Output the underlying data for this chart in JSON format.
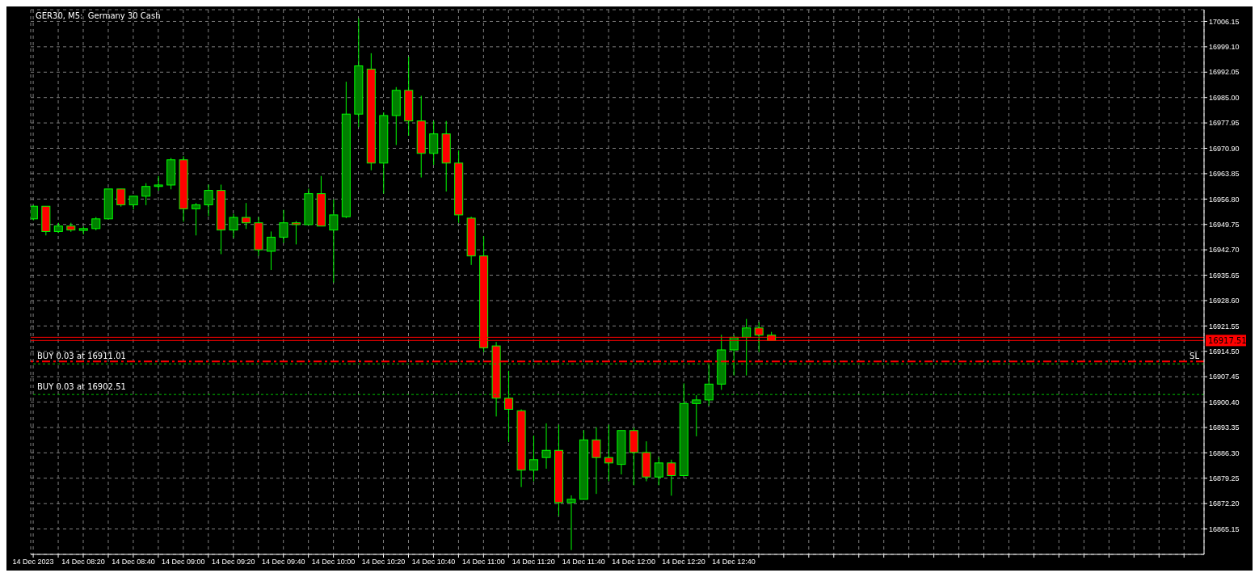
{
  "chart_data": {
    "type": "candlestick",
    "title": "GER30, M5:  Germany 30 Cash",
    "x": [
      "2023-12-14T08:00",
      "2023-12-14T08:05",
      "2023-12-14T08:10",
      "2023-12-14T08:15",
      "2023-12-14T08:20",
      "2023-12-14T08:25",
      "2023-12-14T08:30",
      "2023-12-14T08:35",
      "2023-12-14T08:40",
      "2023-12-14T08:45",
      "2023-12-14T08:50",
      "2023-12-14T08:55",
      "2023-12-14T09:00",
      "2023-12-14T09:05",
      "2023-12-14T09:10",
      "2023-12-14T09:15",
      "2023-12-14T09:20",
      "2023-12-14T09:25",
      "2023-12-14T09:30",
      "2023-12-14T09:35",
      "2023-12-14T09:40",
      "2023-12-14T09:45",
      "2023-12-14T09:50",
      "2023-12-14T09:55",
      "2023-12-14T10:00",
      "2023-12-14T10:05",
      "2023-12-14T10:10",
      "2023-12-14T10:15",
      "2023-12-14T10:20",
      "2023-12-14T10:25",
      "2023-12-14T10:30",
      "2023-12-14T10:35",
      "2023-12-14T10:40",
      "2023-12-14T10:45",
      "2023-12-14T10:50",
      "2023-12-14T10:55",
      "2023-12-14T11:00",
      "2023-12-14T11:05",
      "2023-12-14T11:10",
      "2023-12-14T11:15",
      "2023-12-14T11:20",
      "2023-12-14T11:25",
      "2023-12-14T11:30",
      "2023-12-14T11:35",
      "2023-12-14T11:40",
      "2023-12-14T11:45",
      "2023-12-14T11:50",
      "2023-12-14T11:55",
      "2023-12-14T12:00",
      "2023-12-14T12:05",
      "2023-12-14T12:10",
      "2023-12-14T12:15",
      "2023-12-14T12:20",
      "2023-12-14T12:25",
      "2023-12-14T12:30",
      "2023-12-14T12:35",
      "2023-12-14T12:40",
      "2023-12-14T12:45",
      "2023-12-14T12:50",
      "2023-12-14T12:55"
    ],
    "ohlc": [
      [
        16951.3,
        16955.1,
        16950.9,
        16954.8
      ],
      [
        16954.8,
        16954.8,
        16946.7,
        16947.8
      ],
      [
        16947.8,
        16950.2,
        16947.4,
        16949.3
      ],
      [
        16949.3,
        16950.2,
        16947.7,
        16948.2
      ],
      [
        16948.1,
        16949.2,
        16947.0,
        16948.6
      ],
      [
        16948.6,
        16951.8,
        16948.1,
        16951.3
      ],
      [
        16951.3,
        16959.6,
        16951.3,
        16959.6
      ],
      [
        16959.6,
        16959.6,
        16954.7,
        16955.2
      ],
      [
        16955.2,
        16957.6,
        16953.9,
        16957.6
      ],
      [
        16957.6,
        16961.2,
        16955.1,
        16960.3
      ],
      [
        16960.3,
        16963.2,
        16959.1,
        16960.7
      ],
      [
        16960.7,
        16968.2,
        16959.5,
        16967.7
      ],
      [
        16967.7,
        16968.7,
        16950.5,
        16954.1
      ],
      [
        16954.1,
        16955.7,
        16946.7,
        16955.2
      ],
      [
        16955.2,
        16960.8,
        16952.1,
        16959.2
      ],
      [
        16959.2,
        16960.8,
        16941.5,
        16948.2
      ],
      [
        16948.2,
        16952.7,
        16946.0,
        16951.7
      ],
      [
        16951.7,
        16955.7,
        16948.5,
        16950.2
      ],
      [
        16950.2,
        16951.8,
        16941.0,
        16942.7
      ],
      [
        16942.3,
        16947.8,
        16937.1,
        16946.2
      ],
      [
        16946.2,
        16953.8,
        16944.6,
        16950.2
      ],
      [
        16950.2,
        16950.7,
        16944.2,
        16949.7
      ],
      [
        16949.7,
        16959.7,
        16949.7,
        16958.3
      ],
      [
        16958.3,
        16963.2,
        16949.3,
        16949.3
      ],
      [
        16948.2,
        16956.7,
        16933.6,
        16952.4
      ],
      [
        16951.9,
        16989.4,
        16951.5,
        16980.4
      ],
      [
        16980.4,
        17007.0,
        16976.8,
        16993.8
      ],
      [
        16992.9,
        16997.3,
        16964.8,
        16966.8
      ],
      [
        16966.8,
        16980.9,
        16958.3,
        16980.0
      ],
      [
        16980.0,
        16987.9,
        16971.8,
        16987.0
      ],
      [
        16987.0,
        16996.3,
        16974.4,
        16978.5
      ],
      [
        16978.5,
        16985.5,
        16962.8,
        16969.5
      ],
      [
        16969.5,
        16978.5,
        16966.3,
        16974.9
      ],
      [
        16974.9,
        16978.5,
        16958.9,
        16966.8
      ],
      [
        16966.8,
        16970.3,
        16950.2,
        16952.4
      ],
      [
        16951.5,
        16951.9,
        16938.5,
        16941.0
      ],
      [
        16941.0,
        16946.5,
        16914.3,
        16915.5
      ],
      [
        16916.0,
        16917.1,
        16896.4,
        16901.5
      ],
      [
        16901.5,
        16909.1,
        16889.3,
        16898.4
      ],
      [
        16898.0,
        16898.4,
        16876.8,
        16881.5
      ],
      [
        16881.5,
        16891.1,
        16878.4,
        16884.4
      ],
      [
        16885.0,
        16894.5,
        16881.9,
        16887.0
      ],
      [
        16887.0,
        16894.1,
        16868.8,
        16872.5
      ],
      [
        16872.5,
        16874.5,
        16859.3,
        16873.4
      ],
      [
        16873.4,
        16892.6,
        16873.4,
        16889.9
      ],
      [
        16889.9,
        16893.4,
        16874.9,
        16885.0
      ],
      [
        16885.0,
        16894.1,
        16878.4,
        16883.5
      ],
      [
        16883.1,
        16892.5,
        16880.3,
        16892.5
      ],
      [
        16892.5,
        16893.3,
        16877.3,
        16886.4
      ],
      [
        16886.4,
        16889.5,
        16878.4,
        16879.6
      ],
      [
        16879.6,
        16885.1,
        16877.3,
        16883.5
      ],
      [
        16883.5,
        16884.4,
        16874.4,
        16880.0
      ],
      [
        16880.0,
        16905.6,
        16880.0,
        16900.0
      ],
      [
        16900.0,
        16902.3,
        16890.9,
        16901.0
      ],
      [
        16901.0,
        16910.8,
        16899.4,
        16905.4
      ],
      [
        16905.4,
        16919.1,
        16903.8,
        16914.9
      ],
      [
        16914.9,
        16919.0,
        16907.8,
        16918.4
      ],
      [
        16918.4,
        16923.5,
        16907.8,
        16921.0
      ],
      [
        16921.0,
        16922.6,
        16914.3,
        16919.0
      ],
      [
        16919.0,
        16919.9,
        16917.5,
        16917.5
      ]
    ],
    "colors": [
      "#008000",
      "#ff0000",
      "#008000",
      "#ff0000",
      "#008000",
      "#008000",
      "#008000",
      "#ff0000",
      "#008000",
      "#008000",
      "#008000",
      "#008000",
      "#ff0000",
      "#008000",
      "#008000",
      "#ff0000",
      "#008000",
      "#ff0000",
      "#ff0000",
      "#008000",
      "#008000",
      "#ff0000",
      "#008000",
      "#ff0000",
      "#008000",
      "#008000",
      "#008000",
      "#ff0000",
      "#008000",
      "#008000",
      "#ff0000",
      "#ff0000",
      "#008000",
      "#ff0000",
      "#ff0000",
      "#ff0000",
      "#ff0000",
      "#ff0000",
      "#ff0000",
      "#ff0000",
      "#008000",
      "#008000",
      "#ff0000",
      "#008000",
      "#008000",
      "#ff0000",
      "#ff0000",
      "#008000",
      "#ff0000",
      "#ff0000",
      "#008000",
      "#ff0000",
      "#008000",
      "#008000",
      "#008000",
      "#008000",
      "#008000",
      "#008000",
      "#ff0000",
      "#ff0000"
    ],
    "color": "#00ff00",
    "xlim": [
      "2023-12-14T07:59",
      "2023-12-14T15:48"
    ],
    "xticks": [
      {
        "value": "2023-12-14T08:00",
        "label": "14 Dec 2023"
      },
      {
        "value": "2023-12-14T08:10",
        "label": null
      },
      {
        "value": "2023-12-14T08:20",
        "label": "14 Dec 08:20"
      },
      {
        "value": "2023-12-14T08:30",
        "label": null
      },
      {
        "value": "2023-12-14T08:40",
        "label": "14 Dec 08:40"
      },
      {
        "value": "2023-12-14T08:50",
        "label": null
      },
      {
        "value": "2023-12-14T09:00",
        "label": "14 Dec 09:00"
      },
      {
        "value": "2023-12-14T09:10",
        "label": null
      },
      {
        "value": "2023-12-14T09:20",
        "label": "14 Dec 09:20"
      },
      {
        "value": "2023-12-14T09:30",
        "label": null
      },
      {
        "value": "2023-12-14T09:40",
        "label": "14 Dec 09:40"
      },
      {
        "value": "2023-12-14T09:50",
        "label": null
      },
      {
        "value": "2023-12-14T10:00",
        "label": "14 Dec 10:00"
      },
      {
        "value": "2023-12-14T10:10",
        "label": null
      },
      {
        "value": "2023-12-14T10:20",
        "label": "14 Dec 10:20"
      },
      {
        "value": "2023-12-14T10:30",
        "label": null
      },
      {
        "value": "2023-12-14T10:40",
        "label": "14 Dec 10:40"
      },
      {
        "value": "2023-12-14T10:50",
        "label": null
      },
      {
        "value": "2023-12-14T11:00",
        "label": "14 Dec 11:00"
      },
      {
        "value": "2023-12-14T11:10",
        "label": null
      },
      {
        "value": "2023-12-14T11:20",
        "label": "14 Dec 11:20"
      },
      {
        "value": "2023-12-14T11:30",
        "label": null
      },
      {
        "value": "2023-12-14T11:40",
        "label": "14 Dec 11:40"
      },
      {
        "value": "2023-12-14T11:50",
        "label": null
      },
      {
        "value": "2023-12-14T12:00",
        "label": "14 Dec 12:00"
      },
      {
        "value": "2023-12-14T12:10",
        "label": null
      },
      {
        "value": "2023-12-14T12:20",
        "label": "14 Dec 12:20"
      },
      {
        "value": "2023-12-14T12:30",
        "label": null
      },
      {
        "value": "2023-12-14T12:40",
        "label": "14 Dec 12:40"
      },
      {
        "value": "2023-12-14T12:50",
        "label": null
      },
      {
        "value": "2023-12-14T13:00",
        "label": null
      },
      {
        "value": "2023-12-14T13:10",
        "label": null
      },
      {
        "value": "2023-12-14T13:20",
        "label": null
      },
      {
        "value": "2023-12-14T13:30",
        "label": null
      },
      {
        "value": "2023-12-14T13:40",
        "label": null
      },
      {
        "value": "2023-12-14T13:50",
        "label": null
      },
      {
        "value": "2023-12-14T14:00",
        "label": null
      },
      {
        "value": "2023-12-14T14:10",
        "label": null
      },
      {
        "value": "2023-12-14T14:20",
        "label": null
      },
      {
        "value": "2023-12-14T14:30",
        "label": null
      },
      {
        "value": "2023-12-14T14:40",
        "label": null
      },
      {
        "value": "2023-12-14T14:50",
        "label": null
      },
      {
        "value": "2023-12-14T15:00",
        "label": null
      },
      {
        "value": "2023-12-14T15:10",
        "label": null
      },
      {
        "value": "2023-12-14T15:20",
        "label": null
      },
      {
        "value": "2023-12-14T15:30",
        "label": null
      },
      {
        "value": "2023-12-14T15:40",
        "label": null
      }
    ],
    "ylim": [
      16858.1,
      17009.4
    ],
    "yticks": [
      {
        "value": 16865.15,
        "label": "16865.15"
      },
      {
        "value": 16872.2,
        "label": "16872.20"
      },
      {
        "value": 16879.25,
        "label": "16879.25"
      },
      {
        "value": 16886.3,
        "label": "16886.30"
      },
      {
        "value": 16893.35,
        "label": "16893.35"
      },
      {
        "value": 16900.4,
        "label": "16900.40"
      },
      {
        "value": 16907.45,
        "label": "16907.45"
      },
      {
        "value": 16914.5,
        "label": "16914.50"
      },
      {
        "value": 16921.55,
        "label": "16921.55"
      },
      {
        "value": 16928.6,
        "label": "16928.60"
      },
      {
        "value": 16935.65,
        "label": "16935.65"
      },
      {
        "value": 16942.7,
        "label": "16942.70"
      },
      {
        "value": 16949.75,
        "label": "16949.75"
      },
      {
        "value": 16956.8,
        "label": "16956.80"
      },
      {
        "value": 16963.85,
        "label": "16963.85"
      },
      {
        "value": 16970.9,
        "label": "16970.90"
      },
      {
        "value": 16977.95,
        "label": "16977.95"
      },
      {
        "value": 16985,
        "label": "16985.00"
      },
      {
        "value": 16992.05,
        "label": "16992.05"
      },
      {
        "value": 16999.1,
        "label": "16999.10"
      },
      {
        "value": 17006.15,
        "label": "17006.15"
      }
    ],
    "grid": true,
    "ref_lines": [
      {
        "axis": "y",
        "value": 16918.4,
        "color": "#ff0000",
        "line_style": "solid"
      },
      {
        "axis": "y",
        "value": 16917.51,
        "label": "16917.51",
        "color": "#ff0000",
        "line_style": "solid"
      },
      {
        "axis": "y",
        "value": 16911.7,
        "label": "SL",
        "color": "#ff0000",
        "line_style": "dashed"
      },
      {
        "axis": "y",
        "value": 16911.01,
        "label": "BUY 0.03 at 16911.01",
        "color": "#00c000",
        "line_style": "dotted"
      },
      {
        "axis": "y",
        "value": 16902.51,
        "label": "BUY 0.03 at 16902.51",
        "color": "#00c000",
        "line_style": "dotted"
      }
    ]
  }
}
